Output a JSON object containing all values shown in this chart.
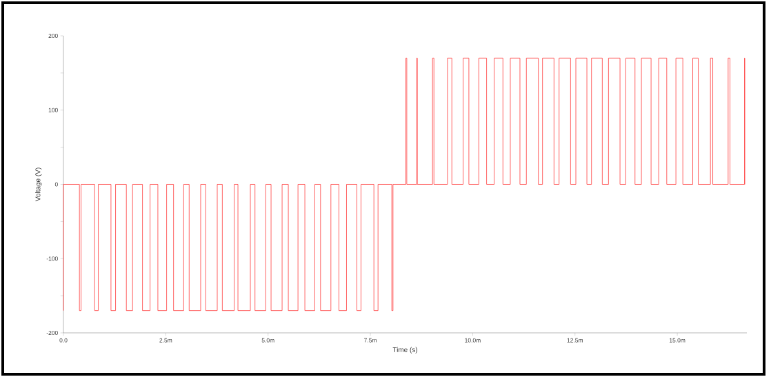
{
  "chart_data": {
    "type": "line",
    "xlabel": "Time (s)",
    "ylabel": "Voltage (V)",
    "xlim": [
      0,
      16.7
    ],
    "ylim": [
      -200,
      200
    ],
    "xticks": [
      {
        "value": 0,
        "label": "0.0"
      },
      {
        "value": 2.5,
        "label": "2.5m"
      },
      {
        "value": 5,
        "label": "5.0m"
      },
      {
        "value": 7.5,
        "label": "7.5m"
      },
      {
        "value": 10,
        "label": "10.0m"
      },
      {
        "value": 12.5,
        "label": "12.5m"
      },
      {
        "value": 15,
        "label": "15.0m"
      }
    ],
    "yticks": [
      -200,
      {
        "value": -150,
        "label": null
      },
      -100,
      {
        "value": -50,
        "label": null
      },
      0,
      {
        "value": 50,
        "label": null
      },
      100,
      {
        "value": 150,
        "label": null
      },
      200
    ],
    "grid": false,
    "marker": "none",
    "line_style": "solid",
    "series": [
      {
        "color": "#ff3b3b",
        "x": [
          0,
          0,
          0.391,
          0.391,
          0.43,
          0.43,
          0.762,
          0.762,
          0.852,
          0.852,
          1.161,
          1.161,
          1.273,
          1.273,
          1.537,
          1.537,
          1.689,
          1.689,
          1.931,
          1.931,
          2.116,
          2.116,
          2.307,
          2.307,
          2.521,
          2.521,
          2.69,
          2.69,
          2.937,
          2.937,
          3.072,
          3.072,
          3.353,
          3.353,
          3.477,
          3.477,
          3.758,
          3.758,
          3.882,
          3.882,
          4.174,
          4.174,
          4.264,
          4.264,
          4.567,
          4.567,
          4.68,
          4.68,
          4.944,
          4.944,
          5.073,
          5.073,
          5.343,
          5.343,
          5.495,
          5.495,
          5.731,
          5.731,
          5.899,
          5.899,
          6.141,
          6.141,
          6.282,
          6.282,
          6.535,
          6.535,
          6.731,
          6.731,
          6.917,
          6.917,
          7.17,
          7.17,
          7.271,
          7.271,
          7.586,
          7.586,
          7.687,
          7.687,
          8.024,
          8.024,
          8.052,
          8.052,
          8.367,
          8.367,
          8.39,
          8.39,
          8.631,
          8.631,
          8.648,
          8.648,
          9.019,
          9.019,
          9.053,
          9.053,
          9.384,
          9.384,
          9.491,
          9.491,
          9.767,
          9.767,
          9.907,
          9.907,
          10.149,
          10.149,
          10.34,
          10.34,
          10.526,
          10.526,
          10.739,
          10.739,
          10.919,
          10.919,
          11.155,
          11.155,
          11.312,
          11.312,
          11.605,
          11.605,
          11.706,
          11.706,
          11.987,
          11.987,
          12.111,
          12.111,
          12.392,
          12.392,
          12.521,
          12.521,
          12.791,
          12.791,
          12.903,
          12.903,
          13.167,
          13.167,
          13.319,
          13.319,
          13.6,
          13.6,
          13.741,
          13.741,
          13.966,
          13.966,
          14.123,
          14.123,
          14.359,
          14.359,
          14.545,
          14.545,
          14.742,
          14.742,
          14.966,
          14.966,
          15.135,
          15.135,
          15.377,
          15.377,
          15.512,
          15.512,
          15.81,
          15.81,
          15.866,
          15.866,
          16.242,
          16.242,
          16.287,
          16.287,
          16.641,
          16.641,
          16.65,
          16.65
        ],
        "values": [
          -170,
          0,
          0,
          -170,
          -170,
          0,
          0,
          -170,
          -170,
          0,
          0,
          -170,
          -170,
          0,
          0,
          -170,
          -170,
          0,
          0,
          -170,
          -170,
          0,
          0,
          -170,
          -170,
          0,
          0,
          -170,
          -170,
          0,
          0,
          -170,
          -170,
          0,
          0,
          -170,
          -170,
          0,
          0,
          -170,
          -170,
          0,
          0,
          -170,
          -170,
          0,
          0,
          -170,
          -170,
          0,
          0,
          -170,
          -170,
          0,
          0,
          -170,
          -170,
          0,
          0,
          -170,
          -170,
          0,
          0,
          -170,
          -170,
          0,
          0,
          -170,
          -170,
          0,
          0,
          -170,
          -170,
          0,
          0,
          -170,
          -170,
          0,
          0,
          -170,
          -170,
          0,
          0,
          170,
          170,
          0,
          0,
          170,
          170,
          0,
          0,
          170,
          170,
          0,
          0,
          170,
          170,
          0,
          0,
          170,
          170,
          0,
          0,
          170,
          170,
          0,
          0,
          170,
          170,
          0,
          0,
          170,
          170,
          0,
          0,
          170,
          170,
          0,
          0,
          170,
          170,
          0,
          0,
          170,
          170,
          0,
          0,
          170,
          170,
          0,
          0,
          170,
          170,
          0,
          0,
          170,
          170,
          0,
          0,
          170,
          170,
          0,
          0,
          170,
          170,
          0,
          0,
          170,
          170,
          0,
          0,
          170,
          170,
          0,
          0,
          170,
          170,
          0,
          0,
          170,
          170,
          0,
          0,
          170,
          170,
          0,
          0,
          170,
          170,
          0
        ]
      }
    ]
  }
}
